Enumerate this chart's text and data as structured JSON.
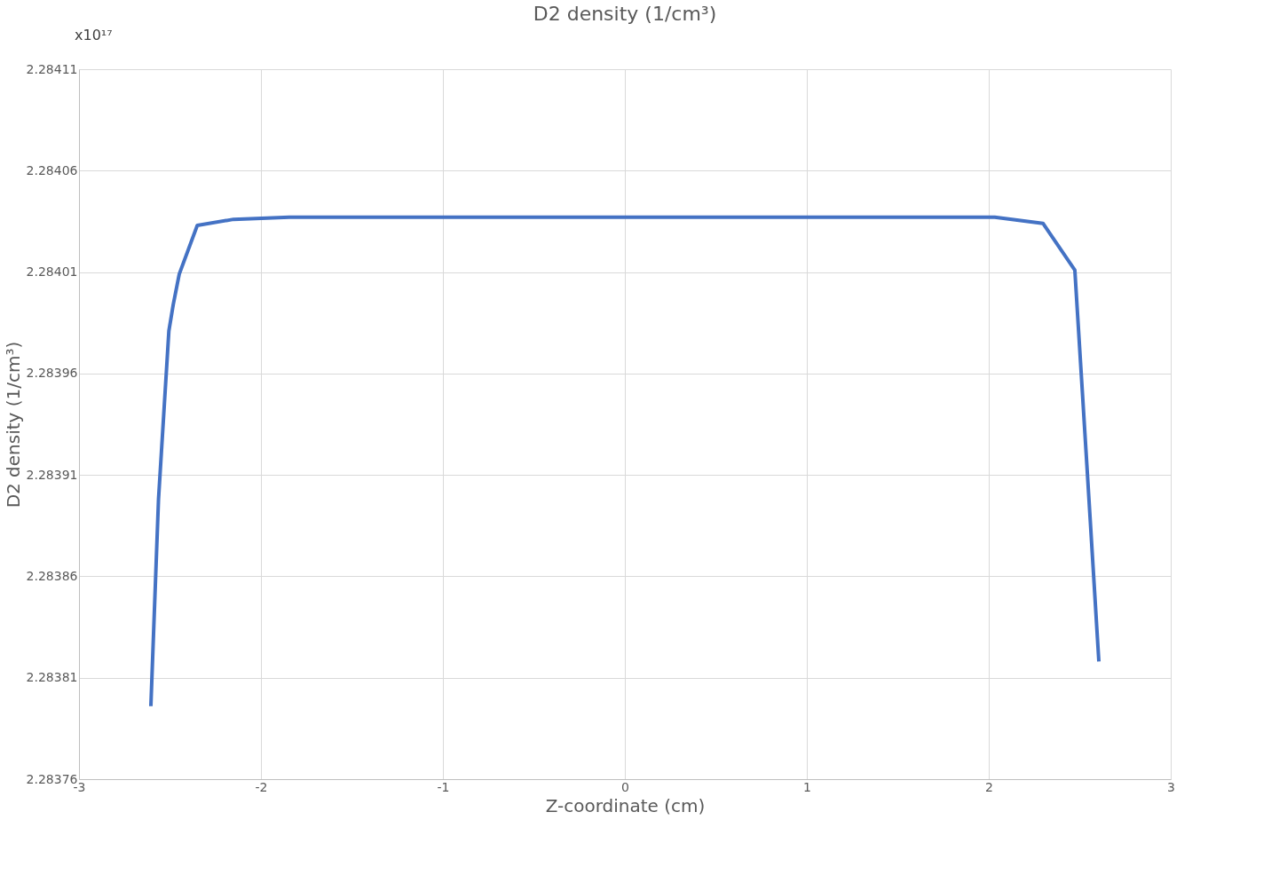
{
  "chart_data": {
    "type": "line",
    "title": "D2 density (1/cm³)",
    "xlabel": "Z-coordinate (cm)",
    "ylabel": "D2 density (1/cm³)",
    "annotations": [
      "x10¹⁷"
    ],
    "series": [
      {
        "color": "#4472c4",
        "x": [
          -2.605,
          -2.563,
          -2.506,
          -2.482,
          -2.449,
          -2.35,
          -2.151,
          -1.844,
          0,
          2.033,
          2.298,
          2.473,
          2.539,
          2.605
        ],
        "values": [
          2.283796,
          2.283898,
          2.283981,
          2.283994,
          2.284009,
          2.284033,
          2.284036,
          2.284037,
          2.284037,
          2.284037,
          2.284034,
          2.284011,
          2.283915,
          2.283818
        ]
      }
    ],
    "xlim": [
      -3,
      3
    ],
    "xticks": [
      -3,
      -2,
      -1,
      0,
      1,
      2,
      3
    ],
    "ylim": [
      2.28376,
      2.28411
    ],
    "yticks": [
      2.28376,
      2.28381,
      2.28386,
      2.28391,
      2.28396,
      2.28401,
      2.28406,
      2.28411
    ],
    "grid": true,
    "marker": "none",
    "line_style": "solid"
  }
}
